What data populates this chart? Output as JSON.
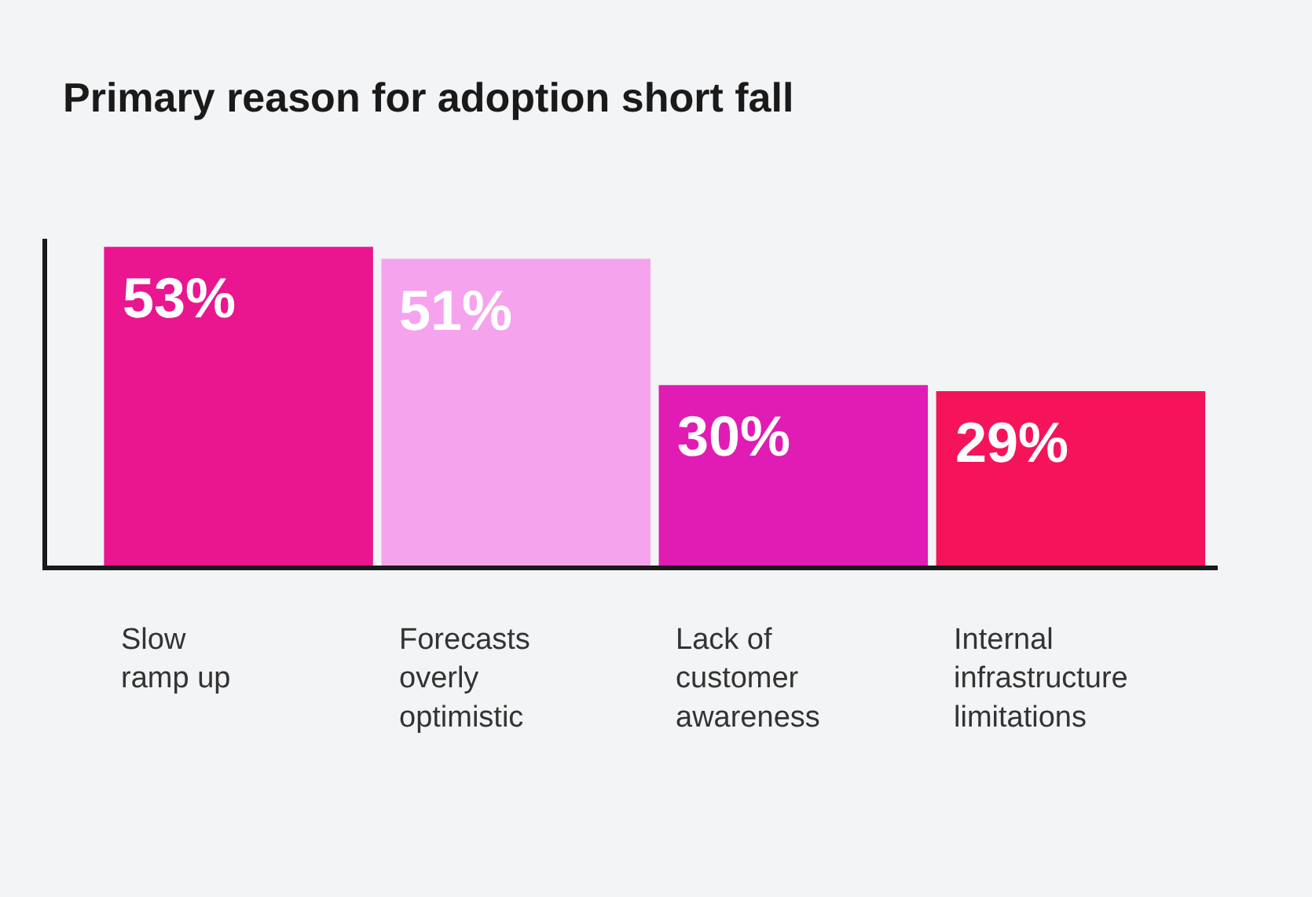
{
  "chart_data": {
    "type": "bar",
    "title": "Primary reason for adoption short fall",
    "categories": [
      "Slow\nramp up",
      "Forecasts\noverly\noptimistic",
      "Lack of\ncustomer\nawareness",
      "Internal\ninfrastructure\nlimitations"
    ],
    "values": [
      53,
      51,
      30,
      29
    ],
    "colors": [
      "#e9168f",
      "#f5a3ec",
      "#e01cb4",
      "#f5145a"
    ],
    "value_labels": [
      "53%",
      "51%",
      "30%",
      "29%"
    ]
  }
}
